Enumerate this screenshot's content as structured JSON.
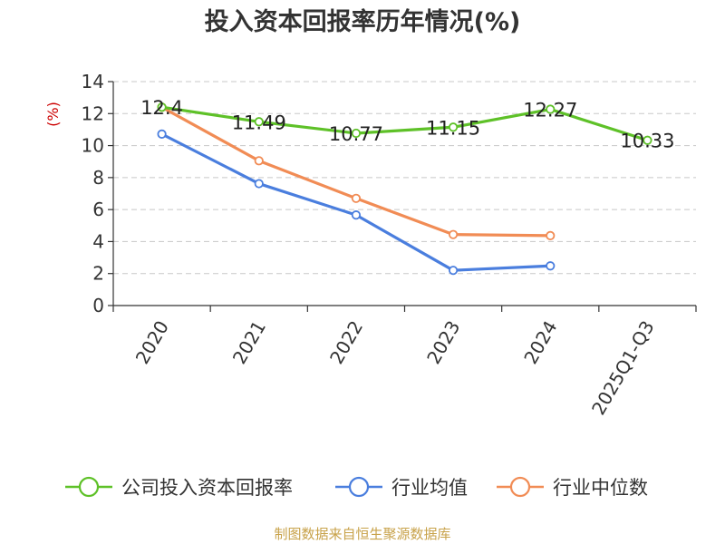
{
  "chart_data": {
    "type": "line",
    "title": "投入资本回报率历年情况(%)",
    "ylabel": "(%)",
    "xlabel": "",
    "categories": [
      "2020",
      "2021",
      "2022",
      "2023",
      "2024",
      "2025Q1-Q3"
    ],
    "ylim": [
      0,
      14
    ],
    "yticks": [
      0,
      2,
      4,
      6,
      8,
      10,
      12,
      14
    ],
    "grid": true,
    "legend_position": "bottom",
    "series": [
      {
        "name": "公司投入资本回报率",
        "color": "#5ec128",
        "values": [
          12.4,
          11.49,
          10.77,
          11.15,
          12.27,
          10.33
        ],
        "labels": [
          "12.4",
          "11.49",
          "10.77",
          "11.15",
          "12.27",
          "10.33"
        ]
      },
      {
        "name": "行业均值",
        "color": "#4a7ede",
        "values": [
          10.72,
          7.62,
          5.66,
          2.2,
          2.48,
          null
        ]
      },
      {
        "name": "行业中位数",
        "color": "#f18c55",
        "values": [
          12.4,
          9.05,
          6.7,
          4.44,
          4.37,
          null
        ]
      }
    ],
    "source": "制图数据来自恒生聚源数据库"
  }
}
